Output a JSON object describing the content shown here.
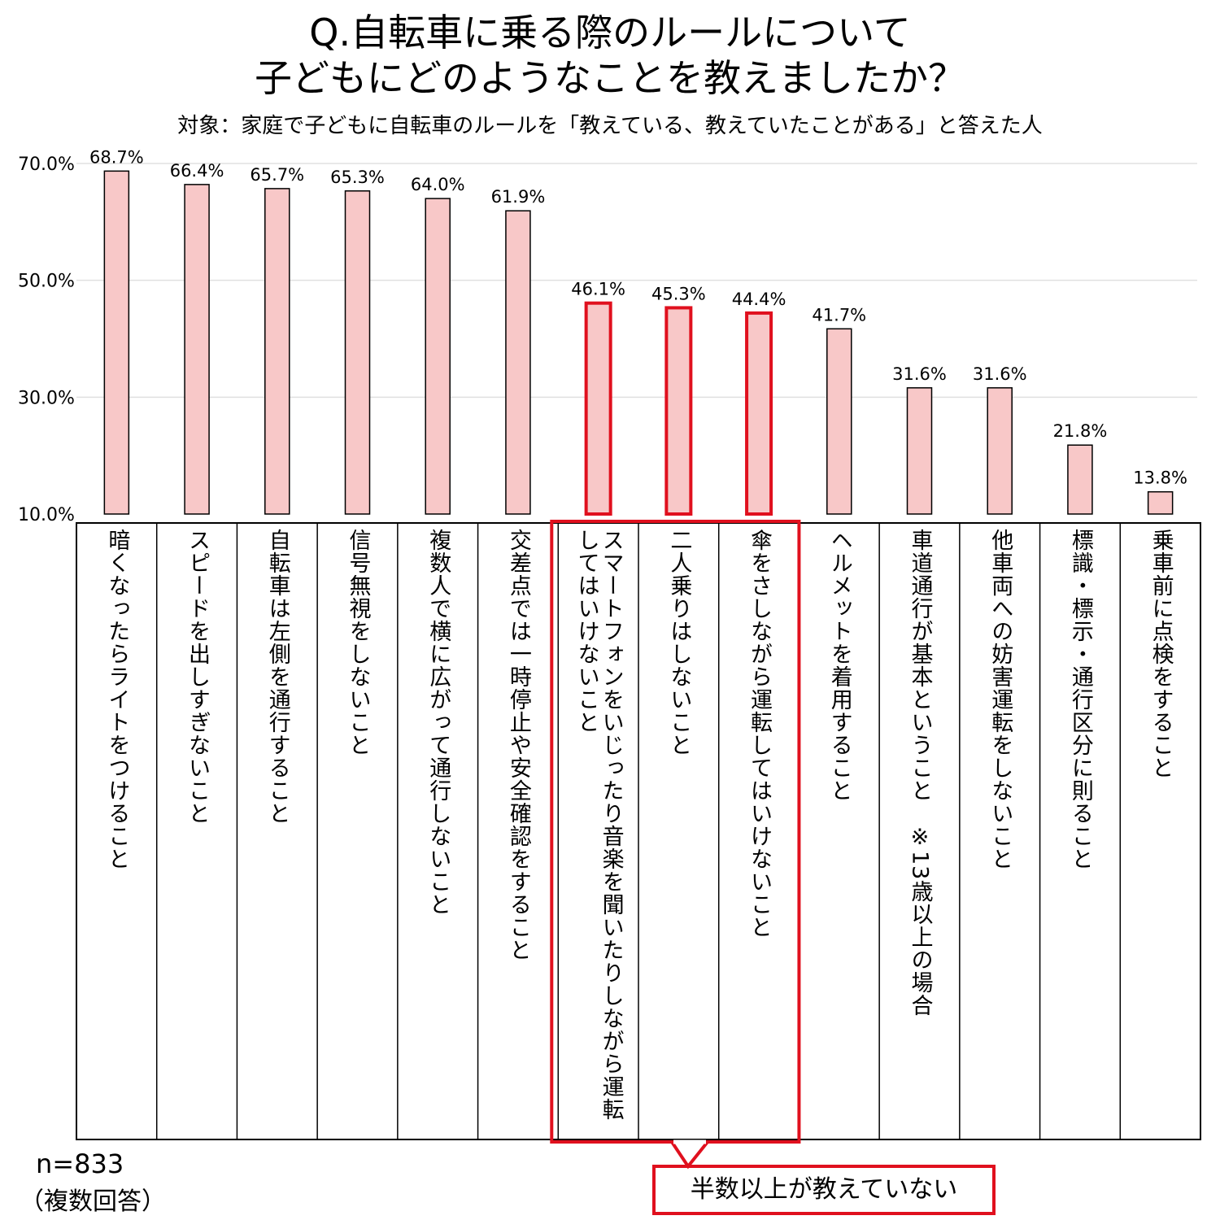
{
  "title_line1": "Q.自転車に乗る際のルールについて",
  "title_line2": "子どもにどのようなことを教えましたか？",
  "subtitle": "対象：家庭で子どもに自転車のルールを「教えている、教えていたことがある」と答えた人",
  "sample_size": "n=833",
  "answer_type": "（複数回答）",
  "callout": "半数以上が教えていない",
  "colors": {
    "bar_fill": "#f8c8c8",
    "highlight": "#e0101e",
    "grid": "#e0e0e0"
  },
  "chart_data": {
    "type": "bar",
    "categories": [
      "暗くなったらライトをつけること",
      "スピードを出しすぎないこと",
      "自転車は左側を通行すること",
      "信号無視をしないこと",
      "複数人で横に広がって通行しないこと",
      "交差点では一時停止や安全確認をすること",
      "スマートフォンをいじったり音楽を聞いたりしながら運転してはいけないこと",
      "二人乗りはしないこと",
      "傘をさしながら運転してはいけないこと",
      "ヘルメットを着用すること",
      "車道通行が基本ということ　※13歳以上の場合",
      "他車両への妨害運転をしないこと",
      "標識・標示・通行区分に則ること",
      "乗車前に点検をすること"
    ],
    "values": [
      68.7,
      66.4,
      65.7,
      65.3,
      64.0,
      61.9,
      46.1,
      45.3,
      44.4,
      41.7,
      31.6,
      31.6,
      21.8,
      13.8
    ],
    "value_labels": [
      "68.7%",
      "66.4%",
      "65.7%",
      "65.3%",
      "64.0%",
      "61.9%",
      "46.1%",
      "45.3%",
      "44.4%",
      "41.7%",
      "31.6%",
      "31.6%",
      "21.8%",
      "13.8%"
    ],
    "highlighted": [
      6,
      7,
      8
    ],
    "yticks": [
      "10.0%",
      "30.0%",
      "50.0%",
      "70.0%"
    ],
    "ytick_values": [
      10,
      30,
      50,
      70
    ],
    "ylim": [
      10,
      70
    ],
    "grid": true
  }
}
